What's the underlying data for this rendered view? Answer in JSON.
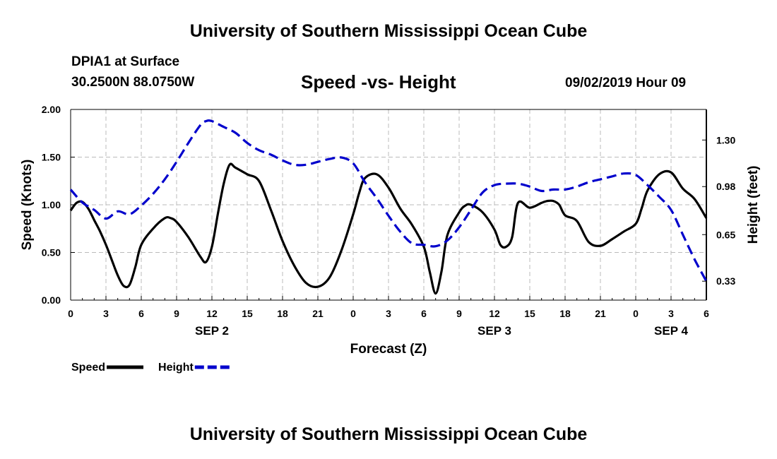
{
  "page": {
    "title_top": "University of Southern Mississippi Ocean Cube",
    "title_bottom": "University of Southern Mississippi Ocean Cube",
    "station_name": "DPIA1 at Surface",
    "station_coords": "30.2500N 88.0750W",
    "chart_title": "Speed -vs- Height",
    "issued": "09/02/2019 Hour 09"
  },
  "colors": {
    "speed_line": "#000000",
    "height_line": "#0000cc",
    "grid": "#bbbbbb",
    "axis": "#000000"
  },
  "chart_data": {
    "type": "line",
    "title": "Speed -vs- Height",
    "xlabel": "Forecast (Z)",
    "ylabel": "Speed (Knots)",
    "y2label": "Height (feet)",
    "x_unit": "hours since SEP 2 00Z",
    "xlim": [
      0,
      54
    ],
    "ylim": [
      0,
      2.0
    ],
    "y2lim": [
      0.2,
      1.51
    ],
    "grid": true,
    "x_ticks": [
      0,
      3,
      6,
      9,
      12,
      15,
      18,
      21,
      24,
      27,
      30,
      33,
      36,
      39,
      42,
      45,
      48,
      51,
      54
    ],
    "x_tick_labels": [
      "0",
      "3",
      "6",
      "9",
      "12",
      "15",
      "18",
      "21",
      "0",
      "3",
      "6",
      "9",
      "12",
      "15",
      "18",
      "21",
      "0",
      "3",
      "6"
    ],
    "y_ticks": [
      0,
      0.5,
      1.0,
      1.5,
      2.0
    ],
    "y_tick_labels": [
      "0.00",
      "0.50",
      "1.00",
      "1.50",
      "2.00"
    ],
    "y2_ticks": [
      0.33,
      0.65,
      0.98,
      1.3
    ],
    "y2_tick_labels": [
      "0.33",
      "0.65",
      "0.98",
      "1.30"
    ],
    "date_labels": [
      {
        "x": 12,
        "label": "SEP 2"
      },
      {
        "x": 36,
        "label": "SEP 3"
      },
      {
        "x": 51,
        "label": "SEP 4"
      }
    ],
    "series": [
      {
        "name": "Speed",
        "axis": "left",
        "style": "solid",
        "x": [
          0,
          0.5,
          1,
          1.5,
          2,
          2.5,
          3,
          3.5,
          4,
          4.5,
          5,
          5.5,
          6,
          7,
          8,
          8.5,
          9,
          10,
          11,
          11.5,
          12,
          12.5,
          13,
          13.5,
          14,
          15,
          16,
          17,
          18,
          19,
          20,
          21,
          22,
          23,
          24,
          24.5,
          25,
          26,
          27,
          28,
          29,
          30,
          30.5,
          31,
          31.5,
          32,
          33,
          33.5,
          34,
          35,
          36,
          36.5,
          37,
          37.5,
          38,
          39,
          40,
          40.5,
          41,
          41.5,
          42,
          43,
          44,
          45,
          46,
          47,
          48,
          48.5,
          49,
          50,
          51,
          52,
          53,
          54
        ],
        "values": [
          0.94,
          1.02,
          1.03,
          0.96,
          0.84,
          0.72,
          0.58,
          0.42,
          0.26,
          0.15,
          0.16,
          0.35,
          0.58,
          0.75,
          0.86,
          0.86,
          0.82,
          0.66,
          0.46,
          0.4,
          0.56,
          0.9,
          1.22,
          1.42,
          1.39,
          1.32,
          1.25,
          0.95,
          0.62,
          0.36,
          0.18,
          0.14,
          0.24,
          0.52,
          0.9,
          1.12,
          1.28,
          1.32,
          1.18,
          0.96,
          0.79,
          0.56,
          0.3,
          0.07,
          0.3,
          0.68,
          0.92,
          0.99,
          1.0,
          0.92,
          0.74,
          0.58,
          0.56,
          0.66,
          1.02,
          0.97,
          1.02,
          1.04,
          1.04,
          1.0,
          0.89,
          0.83,
          0.61,
          0.57,
          0.64,
          0.72,
          0.8,
          0.96,
          1.15,
          1.32,
          1.34,
          1.17,
          1.06,
          0.86
        ]
      },
      {
        "name": "Height",
        "axis": "right",
        "style": "dashed",
        "x": [
          0,
          1,
          2,
          3,
          4,
          5,
          6,
          7,
          8,
          9,
          10,
          11,
          11.5,
          12,
          13,
          14,
          15,
          16,
          17,
          18,
          19,
          20,
          21,
          22,
          23,
          24,
          25,
          26,
          27,
          28,
          29,
          30,
          31,
          32,
          33,
          34,
          35,
          36,
          37,
          38,
          39,
          40,
          41,
          42,
          43,
          44,
          45,
          46,
          47,
          48,
          49,
          50,
          51,
          52,
          53,
          54
        ],
        "values": [
          0.96,
          0.87,
          0.82,
          0.76,
          0.81,
          0.79,
          0.85,
          0.93,
          1.03,
          1.15,
          1.28,
          1.4,
          1.43,
          1.43,
          1.39,
          1.35,
          1.28,
          1.23,
          1.2,
          1.16,
          1.13,
          1.13,
          1.15,
          1.17,
          1.18,
          1.14,
          1.01,
          0.9,
          0.78,
          0.67,
          0.59,
          0.58,
          0.57,
          0.61,
          0.7,
          0.82,
          0.94,
          0.99,
          1.0,
          1.0,
          0.98,
          0.95,
          0.96,
          0.96,
          0.98,
          1.01,
          1.03,
          1.05,
          1.07,
          1.06,
          0.99,
          0.91,
          0.82,
          0.65,
          0.48,
          0.33
        ]
      }
    ],
    "legend": [
      {
        "label": "Speed",
        "style": "solid"
      },
      {
        "label": "Height",
        "style": "dashed"
      }
    ]
  }
}
